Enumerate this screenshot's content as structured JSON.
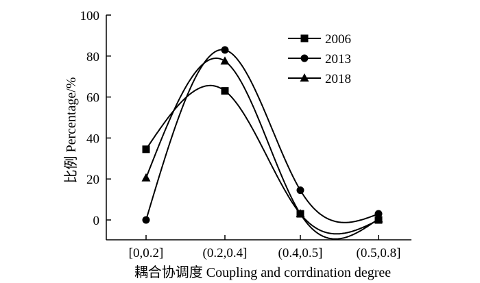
{
  "chart_data": {
    "type": "line",
    "title": "",
    "xlabel": "耦合协调度 Coupling and corrdination degree",
    "ylabel": "比例 Percentage/%",
    "categories": [
      "[0,0.2]",
      "(0.2,0.4]",
      "(0.4,0.5]",
      "(0.5,0.8]"
    ],
    "ylim": [
      -10,
      100
    ],
    "yticks": [
      0,
      20,
      40,
      60,
      80,
      100
    ],
    "grid": false,
    "legend_position": "top-right",
    "smooth": true,
    "series": [
      {
        "name": "2006",
        "marker": "square",
        "values": [
          34.5,
          63,
          3,
          0
        ]
      },
      {
        "name": "2013",
        "marker": "circle",
        "values": [
          0,
          83,
          14.5,
          3
        ]
      },
      {
        "name": "2018",
        "marker": "triangle",
        "values": [
          20.5,
          77.5,
          3,
          0.5
        ]
      }
    ]
  }
}
